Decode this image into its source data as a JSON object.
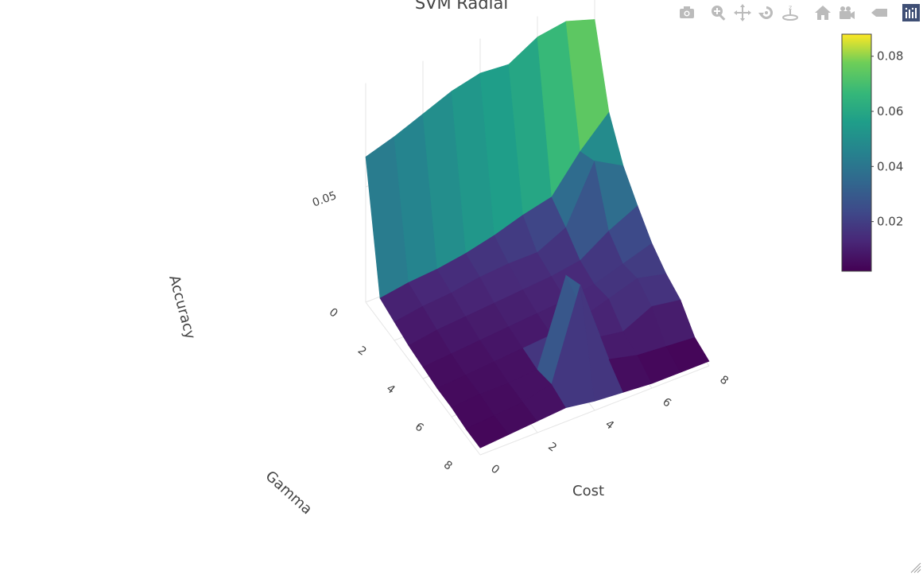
{
  "title": "SVM Radial",
  "modebar": {
    "icons": [
      "camera-icon",
      "zoom-icon",
      "pan-icon",
      "orbit-rotate-icon",
      "turntable-rotate-icon",
      "home-icon",
      "camera-movie-icon",
      "hover-tag-icon",
      "plotly-logo-icon"
    ],
    "color": "#bbbbbb",
    "logo_color": "#3f4f75"
  },
  "chart_data": {
    "type": "surface",
    "title": "SVM Radial",
    "xlabel": "Gamma",
    "ylabel": "Cost",
    "zlabel": "Accuracy",
    "gamma_ticks": [
      "0",
      "2",
      "4",
      "6",
      "8"
    ],
    "cost_ticks": [
      "0",
      "2",
      "4",
      "6",
      "8"
    ],
    "z_ticks": [
      "0.05"
    ],
    "colorscale": "viridis",
    "colorbar": {
      "ticks": [
        "0.02",
        "0.04",
        "0.06",
        "0.08"
      ],
      "tick_values": [
        0.02,
        0.04,
        0.06,
        0.08
      ],
      "range": [
        0.002,
        0.088
      ],
      "placement": "right"
    },
    "gamma": [
      0,
      1,
      2,
      3,
      4,
      5,
      6,
      7,
      8
    ],
    "cost": [
      0,
      1,
      2,
      3,
      4,
      5,
      6,
      7,
      8
    ],
    "z_description_rows_are_gamma_cols_are_cost": [
      [
        0.063,
        0.067,
        0.072,
        0.077,
        0.08,
        0.079,
        0.086,
        0.088,
        0.084
      ],
      [
        0.01,
        0.012,
        0.013,
        0.015,
        0.018,
        0.022,
        0.025,
        0.04,
        0.052
      ],
      [
        0.008,
        0.01,
        0.011,
        0.013,
        0.014,
        0.014,
        0.02,
        0.044,
        0.037
      ],
      [
        0.006,
        0.008,
        0.009,
        0.01,
        0.011,
        0.012,
        0.014,
        0.022,
        0.028
      ],
      [
        0.005,
        0.006,
        0.007,
        0.008,
        0.009,
        0.01,
        0.012,
        0.016,
        0.02
      ],
      [
        0.004,
        0.005,
        0.006,
        0.007,
        0.008,
        0.01,
        0.014,
        0.018,
        0.015
      ],
      [
        0.004,
        0.005,
        0.005,
        0.006,
        0.042,
        0.01,
        0.008,
        0.014,
        0.012
      ],
      [
        0.003,
        0.004,
        0.005,
        0.008,
        0.046,
        0.009,
        0.006,
        0.005,
        0.004
      ],
      [
        0.003,
        0.004,
        0.005,
        0.006,
        0.004,
        0.003,
        0.002,
        0.002,
        0.002
      ]
    ]
  }
}
